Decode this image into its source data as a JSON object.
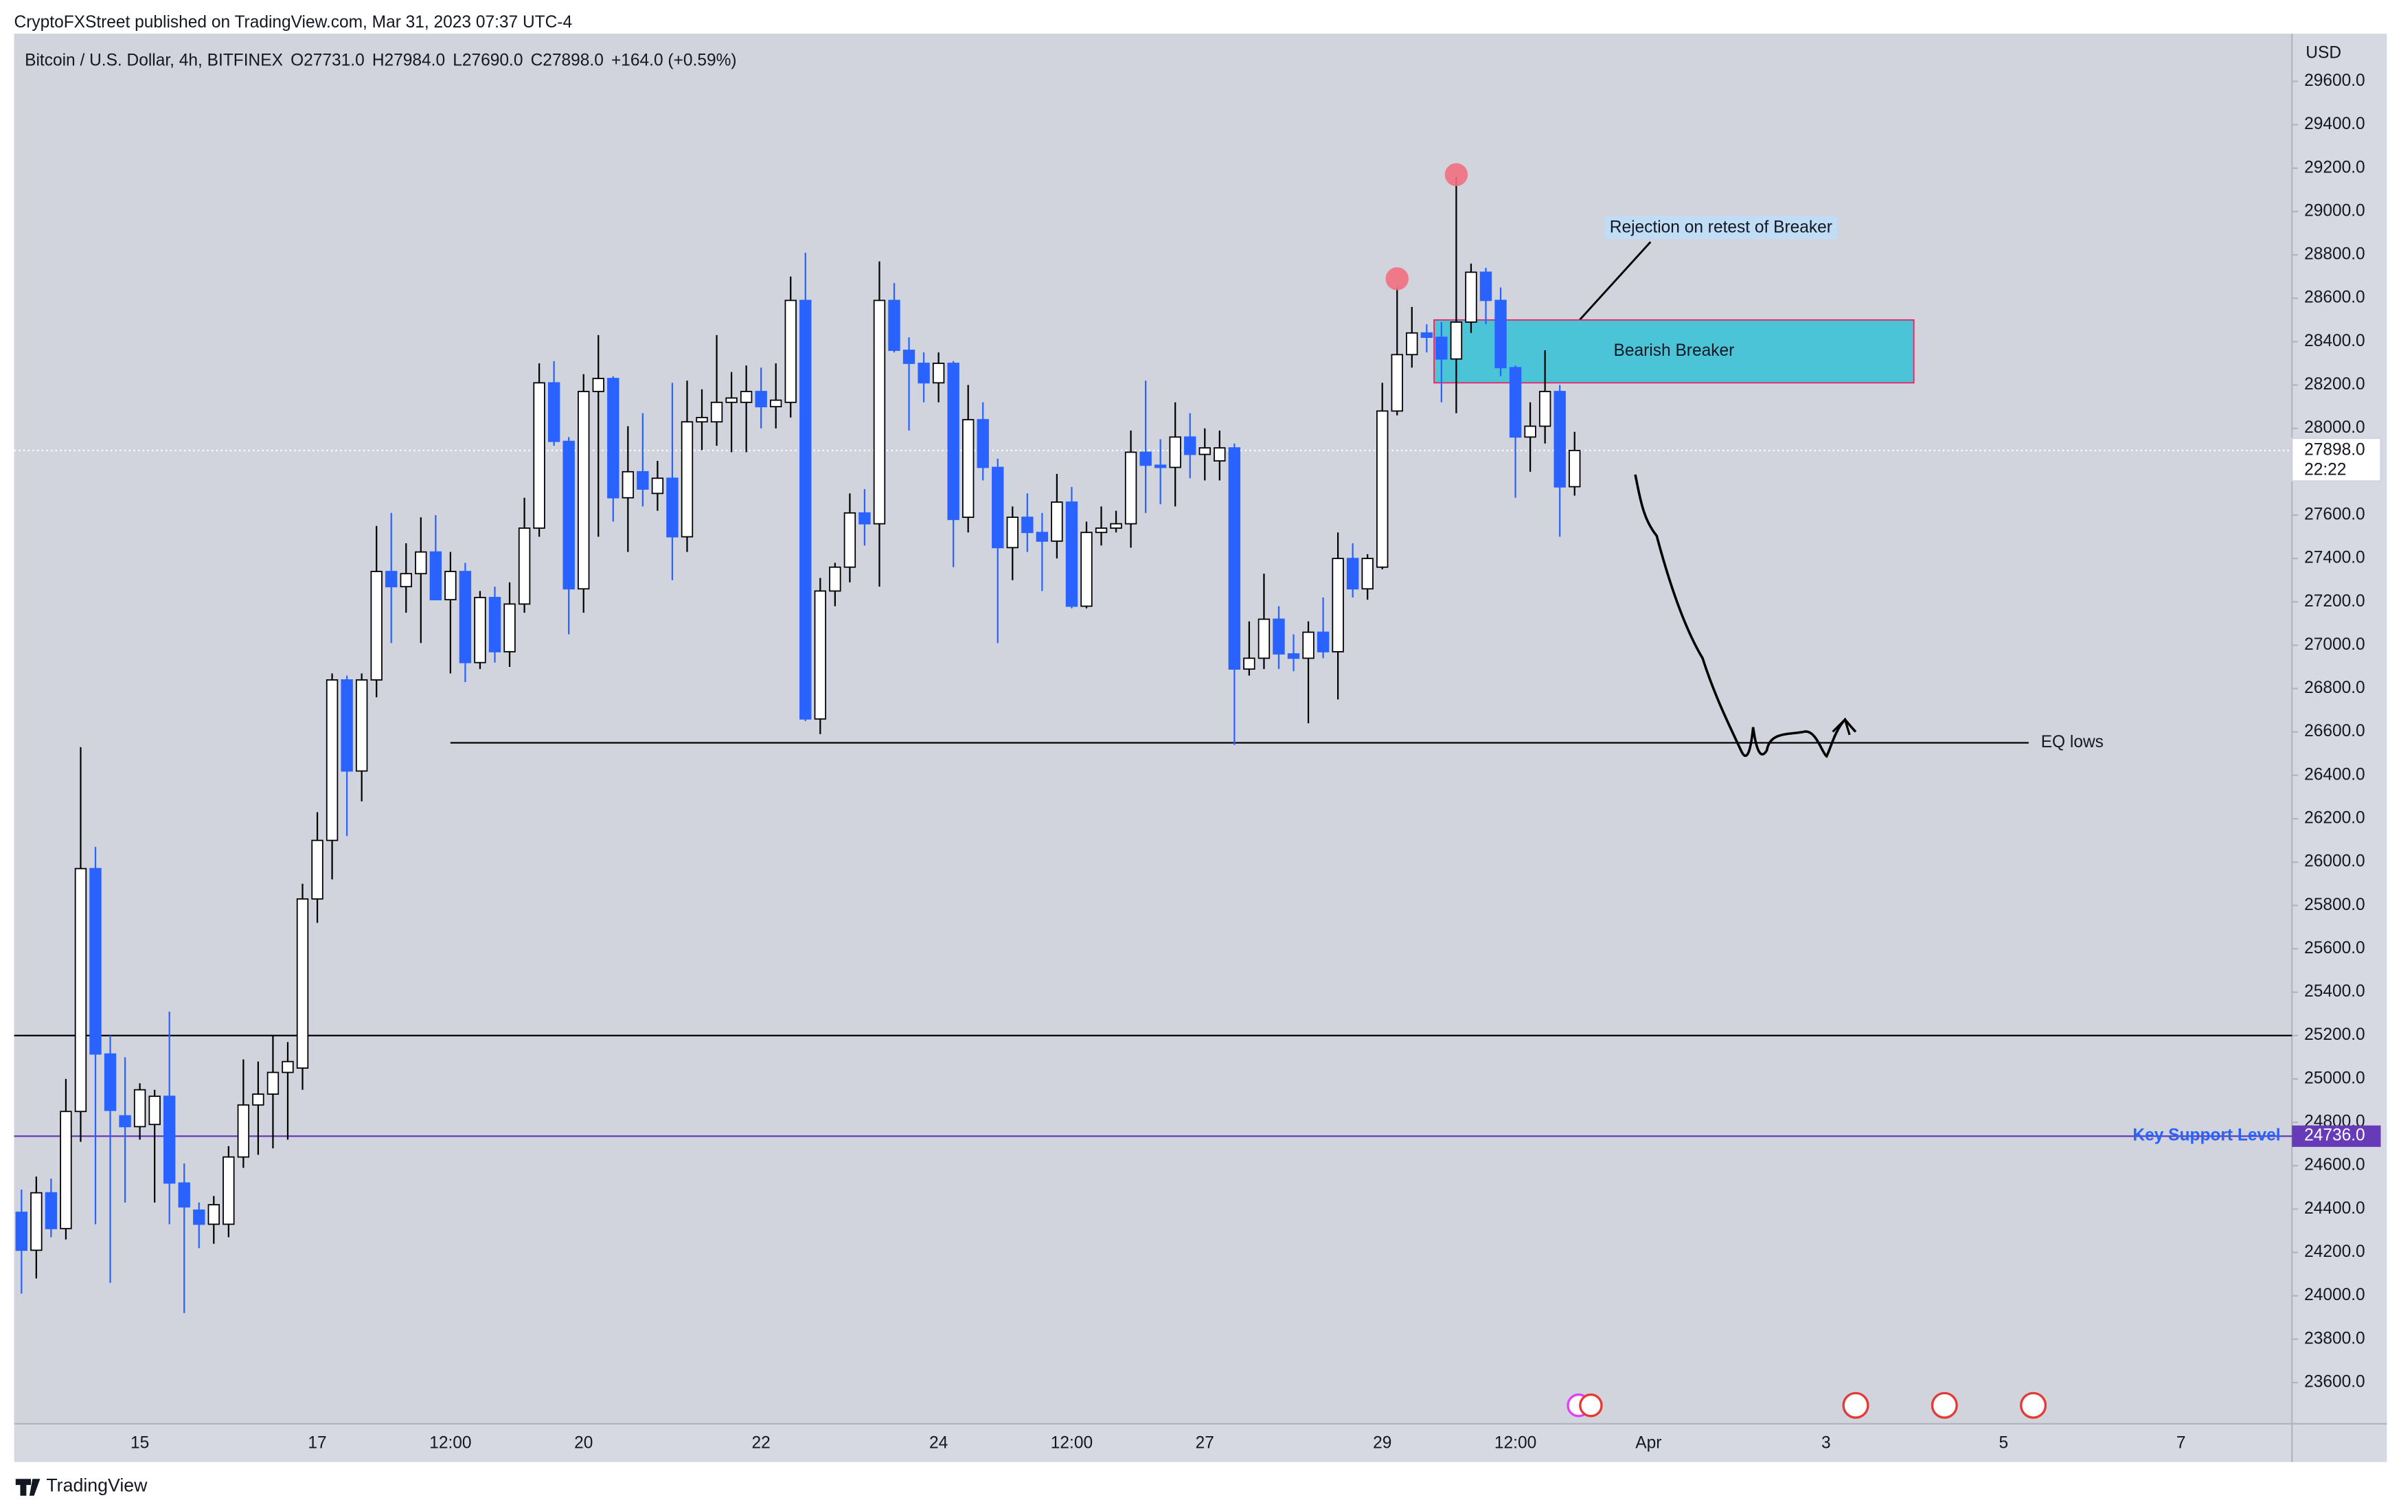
{
  "chart_data": {
    "type": "candlestick",
    "publisher": "CryptoFXStreet published on TradingView.com, Mar 31, 2023 07:37 UTC-4",
    "title": "Bitcoin / U.S. Dollar, 4h, BITFINEX",
    "ohlc_labels": [
      "O27731.0",
      "H27984.0",
      "L27690.0",
      "C27898.0"
    ],
    "change": "+164.0 (+0.59%)",
    "axis_label": "USD",
    "footer": "TradingView",
    "up_color": "#ffffff",
    "down_color": "#2962ff",
    "categories": [
      null,
      null,
      null,
      null,
      null,
      null,
      null,
      null,
      "15",
      null,
      null,
      null,
      null,
      null,
      null,
      null,
      null,
      null,
      null,
      null,
      "17",
      null,
      null,
      null,
      null,
      null,
      null,
      null,
      null,
      "12:00",
      null,
      null,
      null,
      null,
      null,
      null,
      null,
      null,
      "20",
      null,
      null,
      null,
      null,
      null,
      null,
      null,
      null,
      null,
      null,
      null,
      "22",
      null,
      null,
      null,
      null,
      null,
      null,
      null,
      null,
      null,
      null,
      null,
      "24",
      null,
      null,
      null,
      null,
      null,
      null,
      null,
      null,
      "12:00",
      null,
      null,
      null,
      null,
      null,
      null,
      null,
      null,
      "27",
      null,
      null,
      null,
      null,
      null,
      null,
      null,
      null,
      null,
      null,
      null,
      "29",
      null,
      null,
      null,
      null,
      null,
      null,
      null,
      null,
      "12:00",
      null,
      null,
      null,
      null,
      null,
      null,
      null,
      null,
      "Apr",
      null,
      null,
      null,
      null,
      null,
      null,
      null,
      null,
      null,
      null,
      null,
      "3",
      null,
      null,
      null,
      null,
      null,
      null,
      null,
      null,
      null,
      null,
      null,
      "5",
      null,
      null,
      null,
      null,
      null,
      null,
      null,
      null,
      null,
      null,
      null,
      "7",
      null,
      null,
      null,
      null,
      null,
      null,
      null
    ],
    "open": [
      24385,
      24210,
      24475,
      24310,
      24850,
      25970,
      25115,
      24830,
      24780,
      24790,
      24920,
      24520,
      24395,
      24330,
      24330,
      24640,
      24880,
      24930,
      25030,
      25050,
      25830,
      26100,
      26840,
      26420,
      26840,
      27340,
      27270,
      27330,
      27430,
      27210,
      27340,
      26920,
      27220,
      26970,
      27190,
      27540,
      28210,
      27940,
      27260,
      28170,
      28230,
      27680,
      27800,
      27700,
      27770,
      27500,
      28030,
      28030,
      28120,
      28120,
      28170,
      28100,
      28120,
      28590,
      26660,
      27250,
      27360,
      27610,
      27560,
      28590,
      28360,
      28300,
      28210,
      28300,
      27590,
      28040,
      27820,
      27450,
      27590,
      27520,
      27480,
      27660,
      27180,
      27520,
      27540,
      27560,
      27890,
      27830,
      27820,
      27960,
      27880,
      27850,
      27910,
      26890,
      26940,
      27120,
      26960,
      26940,
      27060,
      26970,
      27400,
      27260,
      27360,
      28080,
      28340,
      28440,
      28420,
      28320,
      28490,
      28720,
      28590,
      28280,
      27960,
      28010,
      28170,
      27731,
      null,
      null,
      null,
      null,
      null,
      null,
      null,
      null,
      null,
      null,
      null,
      null,
      null,
      null,
      null,
      null,
      null,
      null,
      null,
      null,
      null,
      null,
      null,
      null,
      null,
      null,
      null,
      null,
      null,
      null,
      null,
      null,
      null,
      null,
      null,
      null,
      null,
      null,
      null,
      null,
      null,
      null,
      null,
      null,
      null,
      null,
      null,
      null
    ],
    "high": [
      24490,
      24550,
      24540,
      25000,
      26530,
      26070,
      25200,
      25100,
      24980,
      24950,
      25310,
      24610,
      24430,
      24460,
      24690,
      25090,
      25080,
      25200,
      25170,
      25900,
      26230,
      26870,
      26860,
      26870,
      27550,
      27610,
      27470,
      27590,
      27600,
      27430,
      27380,
      27250,
      27270,
      27290,
      27680,
      28300,
      28310,
      27960,
      28250,
      28430,
      28240,
      28010,
      28070,
      27850,
      28210,
      28220,
      28180,
      28430,
      28260,
      28290,
      28280,
      28300,
      28700,
      28810,
      27310,
      27380,
      27700,
      27720,
      28770,
      28670,
      28420,
      28350,
      28350,
      28310,
      28200,
      28120,
      27860,
      27640,
      27700,
      27610,
      27790,
      27730,
      27570,
      27640,
      27620,
      27990,
      28220,
      27950,
      28120,
      28070,
      28000,
      27990,
      27930,
      27110,
      27330,
      27180,
      27050,
      27110,
      27220,
      27520,
      27470,
      27420,
      28210,
      28650,
      28560,
      28480,
      28490,
      29160,
      28760,
      28740,
      28650,
      28290,
      28120,
      28360,
      28200,
      27984,
      null,
      null,
      null,
      null,
      null,
      null,
      null,
      null,
      null,
      null,
      null,
      null,
      null,
      null,
      null,
      null,
      null,
      null,
      null,
      null,
      null,
      null,
      null,
      null,
      null,
      null,
      null,
      null,
      null,
      null,
      null,
      null,
      null,
      null,
      null,
      null,
      null,
      null,
      null,
      null,
      null,
      null,
      null,
      null,
      null,
      null,
      null,
      null
    ],
    "low": [
      24010,
      24080,
      24270,
      24260,
      24710,
      24330,
      24060,
      24430,
      24720,
      24430,
      24330,
      23920,
      24220,
      24240,
      24270,
      24590,
      24650,
      24680,
      24720,
      24950,
      25720,
      25920,
      26120,
      26280,
      26760,
      27010,
      27150,
      27010,
      27210,
      26870,
      26830,
      26890,
      26920,
      26900,
      27150,
      27500,
      27920,
      27050,
      27150,
      27500,
      27570,
      27430,
      27640,
      27620,
      27300,
      27430,
      27900,
      27920,
      27890,
      27890,
      28000,
      28000,
      28050,
      26650,
      26590,
      27180,
      27290,
      27460,
      27270,
      28350,
      27990,
      28120,
      28120,
      27360,
      27520,
      27760,
      27010,
      27300,
      27430,
      27250,
      27400,
      27170,
      27170,
      27460,
      27520,
      27450,
      27610,
      27650,
      27640,
      27770,
      27760,
      27760,
      26540,
      26860,
      26890,
      26890,
      26880,
      26640,
      26940,
      26750,
      27220,
      27210,
      27350,
      28060,
      28280,
      28350,
      28120,
      28070,
      28440,
      28480,
      28240,
      27680,
      27800,
      27930,
      27500,
      27690,
      null,
      null,
      null,
      null,
      null,
      null,
      null,
      null,
      null,
      null,
      null,
      null,
      null,
      null,
      null,
      null,
      null,
      null,
      null,
      null,
      null,
      null,
      null,
      null,
      null,
      null,
      null,
      null,
      null,
      null,
      null,
      null,
      null,
      null,
      null,
      null,
      null,
      null,
      null,
      null,
      null,
      null,
      null,
      null,
      null,
      null,
      null,
      null
    ],
    "close": [
      24210,
      24475,
      24310,
      24850,
      25970,
      25115,
      24855,
      24780,
      24950,
      24920,
      24520,
      24410,
      24330,
      24420,
      24640,
      24880,
      24930,
      25030,
      25080,
      25830,
      26100,
      26840,
      26420,
      26840,
      27340,
      27270,
      27330,
      27430,
      27210,
      27340,
      26920,
      27220,
      26970,
      27190,
      27540,
      28210,
      27940,
      27260,
      28170,
      28230,
      27680,
      27800,
      27720,
      27770,
      27500,
      28030,
      28050,
      28120,
      28140,
      28170,
      28100,
      28130,
      28590,
      26660,
      27250,
      27360,
      27610,
      27560,
      28590,
      28360,
      28300,
      28210,
      28300,
      27580,
      28040,
      27820,
      27450,
      27590,
      27520,
      27480,
      27660,
      27180,
      27520,
      27540,
      27560,
      27890,
      27830,
      27820,
      27960,
      27880,
      27910,
      27910,
      26890,
      26940,
      27120,
      26960,
      26940,
      27060,
      26970,
      27400,
      27260,
      27400,
      28080,
      28340,
      28440,
      28420,
      28320,
      28490,
      28720,
      28590,
      28280,
      27960,
      28010,
      28170,
      27730,
      27898,
      null,
      null,
      null,
      null,
      null,
      null,
      null,
      null,
      null,
      null,
      null,
      null,
      null,
      null,
      null,
      null,
      null,
      null,
      null,
      null,
      null,
      null,
      null,
      null,
      null,
      null,
      null,
      null,
      null,
      null,
      null,
      null,
      null,
      null,
      null,
      null,
      null,
      null,
      null,
      null,
      null,
      null,
      null,
      null,
      null,
      null,
      null,
      null
    ],
    "ylim": [
      23410,
      29820
    ],
    "yticks": [
      {
        "value": 23600,
        "label": "23600.0"
      },
      {
        "value": 23800,
        "label": "23800.0"
      },
      {
        "value": 24000,
        "label": "24000.0"
      },
      {
        "value": 24200,
        "label": "24200.0"
      },
      {
        "value": 24400,
        "label": "24400.0"
      },
      {
        "value": 24600,
        "label": "24600.0"
      },
      {
        "value": 24800,
        "label": "24800.0"
      },
      {
        "value": 25000,
        "label": "25000.0"
      },
      {
        "value": 25200,
        "label": "25200.0"
      },
      {
        "value": 25400,
        "label": "25400.0"
      },
      {
        "value": 25600,
        "label": "25600.0"
      },
      {
        "value": 25800,
        "label": "25800.0"
      },
      {
        "value": 26000,
        "label": "26000.0"
      },
      {
        "value": 26200,
        "label": "26200.0"
      },
      {
        "value": 26400,
        "label": "26400.0"
      },
      {
        "value": 26600,
        "label": "26600.0"
      },
      {
        "value": 26800,
        "label": "26800.0"
      },
      {
        "value": 27000,
        "label": "27000.0"
      },
      {
        "value": 27200,
        "label": "27200.0"
      },
      {
        "value": 27400,
        "label": "27400.0"
      },
      {
        "value": 27600,
        "label": "27600.0"
      },
      {
        "value": 27800,
        "label": "27800.0"
      },
      {
        "value": 28000,
        "label": "28000.0"
      },
      {
        "value": 28200,
        "label": "28200.0"
      },
      {
        "value": 28400,
        "label": "28400.0"
      },
      {
        "value": 28600,
        "label": "28600.0"
      },
      {
        "value": 28800,
        "label": "28800.0"
      },
      {
        "value": 29000,
        "label": "29000.0"
      },
      {
        "value": 29200,
        "label": "29200.0"
      },
      {
        "value": 29400,
        "label": "29400.0"
      },
      {
        "value": 29600,
        "label": "29600.0"
      }
    ],
    "price_line": {
      "value": 27898,
      "label": "27898.0",
      "countdown": "22:22"
    },
    "levels": [
      {
        "label": "EQ lows",
        "value": 26550,
        "color": "#000000"
      },
      {
        "value": 25200,
        "color": "#000000"
      },
      {
        "label": "Key Support Level",
        "value": 24736,
        "value_label": "24736.0",
        "color": "#673ab7"
      }
    ],
    "zone": {
      "label": "Bearish Breaker",
      "low": 28210,
      "high": 28500,
      "color": "#4cc4d8"
    },
    "annotation": "Rejection on retest of Breaker",
    "markers": [
      {
        "value": 28690
      },
      {
        "value": 29170
      }
    ]
  }
}
